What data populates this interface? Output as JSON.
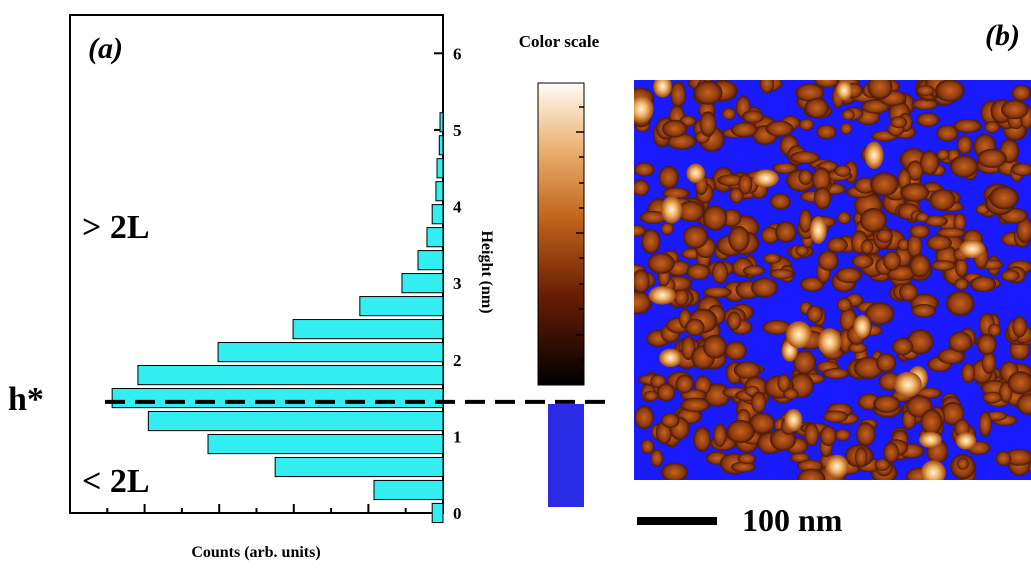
{
  "chart_data": {
    "type": "barh",
    "panel_label": "(a)",
    "x_label": "Counts (arb. units)",
    "y_label": "Height (nm)",
    "upper_label": "> 2L",
    "lower_label": "< 2L",
    "threshold": {
      "label": "h*",
      "value": 1.45
    },
    "y": [
      0,
      0.3,
      0.6,
      0.9,
      1.2,
      1.5,
      1.8,
      2.1,
      2.4,
      2.7,
      3.0,
      3.3,
      3.6,
      3.9,
      4.2,
      4.5,
      4.8,
      5.1
    ],
    "values": [
      0.29,
      1.85,
      4.5,
      6.3,
      7.9,
      8.87,
      8.18,
      6.03,
      4.02,
      2.23,
      1.1,
      0.67,
      0.43,
      0.29,
      0.19,
      0.16,
      0.1,
      0.08
    ],
    "color": "#33eef0",
    "xlim": [
      0,
      10
    ],
    "xticks": [
      0,
      1,
      2,
      3,
      4,
      5,
      6,
      7,
      8,
      9,
      10
    ],
    "ylim": [
      0,
      6.5
    ],
    "yticks": [
      0,
      1,
      2,
      3,
      4,
      5,
      6
    ],
    "color_scale_title": "Color scale",
    "image_panel_label": "(b)",
    "scale_bar_label": "100 nm"
  }
}
